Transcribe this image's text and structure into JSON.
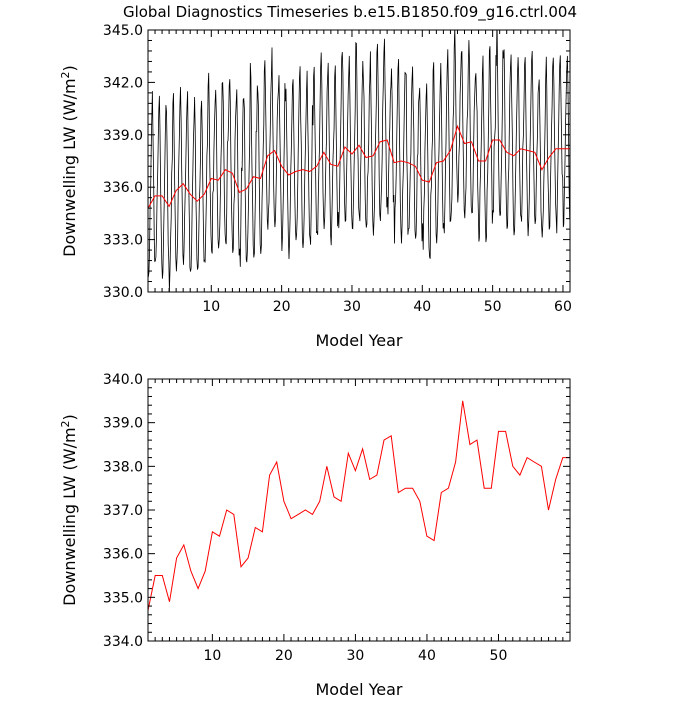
{
  "title": "Global Diagnostics Timeseries b.e15.B1850.f09_g16.ctrl.004",
  "colors": {
    "monthly": "#000000",
    "annual": "#ff0000",
    "axes": "#000000",
    "background": "#ffffff"
  },
  "chart_data": [
    {
      "type": "line",
      "xlabel": "Model Year",
      "ylabel": "Downwelling LW (W/m",
      "ylabel_sup": "2",
      "ylabel_close": ")",
      "xlim": [
        1,
        61
      ],
      "ylim": [
        330.0,
        345.0
      ],
      "xticks": [
        10,
        20,
        30,
        40,
        50,
        60
      ],
      "xtick_labels": [
        "10",
        "20",
        "30",
        "40",
        "50",
        "60"
      ],
      "xminor_step": 1,
      "yticks": [
        330.0,
        333.0,
        336.0,
        339.0,
        342.0,
        345.0
      ],
      "ytick_labels": [
        "330.0",
        "333.0",
        "336.0",
        "339.0",
        "342.0",
        "345.0"
      ],
      "yminor_step": 0.6,
      "grid": false,
      "legend": "none",
      "monthly_seasonal_cycle": {
        "peak_months": [
          1,
          2
        ],
        "trough_months": [
          7,
          8
        ],
        "pattern": [
          4.8,
          5.5,
          3.5,
          0.8,
          -1.8,
          -3.6,
          -4.3,
          -3.8,
          -2.2,
          -0.4,
          1.3,
          3.1
        ],
        "noise": 0.6
      },
      "series": [
        {
          "name": "",
          "kind": "annual_mean",
          "x": [
            1,
            2,
            3,
            4,
            5,
            6,
            7,
            8,
            9,
            10,
            11,
            12,
            13,
            14,
            15,
            16,
            17,
            18,
            19,
            20,
            21,
            22,
            23,
            24,
            25,
            26,
            27,
            28,
            29,
            30,
            31,
            32,
            33,
            34,
            35,
            36,
            37,
            38,
            39,
            40,
            41,
            42,
            43,
            44,
            45,
            46,
            47,
            48,
            49,
            50,
            51,
            52,
            53,
            54,
            55,
            56,
            57,
            58,
            59,
            60,
            61
          ],
          "values": [
            334.8,
            335.5,
            335.5,
            334.9,
            335.8,
            336.2,
            335.6,
            335.2,
            335.6,
            336.5,
            336.4,
            337.0,
            336.8,
            335.7,
            335.9,
            336.6,
            336.5,
            337.8,
            338.1,
            337.2,
            336.7,
            336.9,
            337.0,
            336.9,
            337.2,
            338.0,
            337.3,
            337.2,
            338.3,
            337.9,
            338.4,
            337.7,
            337.8,
            338.6,
            338.7,
            337.4,
            337.5,
            337.4,
            337.2,
            336.4,
            336.3,
            337.4,
            337.5,
            338.1,
            339.5,
            338.5,
            338.6,
            337.5,
            337.5,
            338.7,
            338.7,
            338.0,
            337.8,
            338.2,
            338.1,
            338.0,
            337.0,
            337.7,
            338.2,
            338.2,
            338.2
          ]
        }
      ]
    },
    {
      "type": "line",
      "xlabel": "Model Year",
      "ylabel": "Downwelling LW (W/m",
      "ylabel_sup": "2",
      "ylabel_close": ")",
      "xlim": [
        1,
        60
      ],
      "ylim": [
        334.0,
        340.0
      ],
      "xticks": [
        10,
        20,
        30,
        40,
        50
      ],
      "xtick_labels": [
        "10",
        "20",
        "30",
        "40",
        "50"
      ],
      "xminor_step": 1,
      "yticks": [
        334.0,
        335.0,
        336.0,
        337.0,
        338.0,
        339.0,
        340.0
      ],
      "ytick_labels": [
        "334.0",
        "335.0",
        "336.0",
        "337.0",
        "338.0",
        "339.0",
        "340.0"
      ],
      "yminor_step": 0.2,
      "grid": false,
      "legend": "none",
      "series": [
        {
          "name": "",
          "kind": "annual_mean",
          "x": [
            1,
            2,
            3,
            4,
            5,
            6,
            7,
            8,
            9,
            10,
            11,
            12,
            13,
            14,
            15,
            16,
            17,
            18,
            19,
            20,
            21,
            22,
            23,
            24,
            25,
            26,
            27,
            28,
            29,
            30,
            31,
            32,
            33,
            34,
            35,
            36,
            37,
            38,
            39,
            40,
            41,
            42,
            43,
            44,
            45,
            46,
            47,
            48,
            49,
            50,
            51,
            52,
            53,
            54,
            55,
            56,
            57,
            58,
            59,
            60
          ],
          "values": [
            334.7,
            335.5,
            335.5,
            334.9,
            335.9,
            336.2,
            335.6,
            335.2,
            335.6,
            336.5,
            336.4,
            337.0,
            336.9,
            335.7,
            335.9,
            336.6,
            336.5,
            337.8,
            338.1,
            337.2,
            336.8,
            336.9,
            337.0,
            336.9,
            337.2,
            338.0,
            337.3,
            337.2,
            338.3,
            337.9,
            338.4,
            337.7,
            337.8,
            338.6,
            338.7,
            337.4,
            337.5,
            337.5,
            337.2,
            336.4,
            336.3,
            337.4,
            337.5,
            338.1,
            339.5,
            338.5,
            338.6,
            337.5,
            337.5,
            338.8,
            338.8,
            338.0,
            337.8,
            338.2,
            338.1,
            338.0,
            337.0,
            337.7,
            338.2,
            338.2
          ]
        }
      ]
    }
  ]
}
